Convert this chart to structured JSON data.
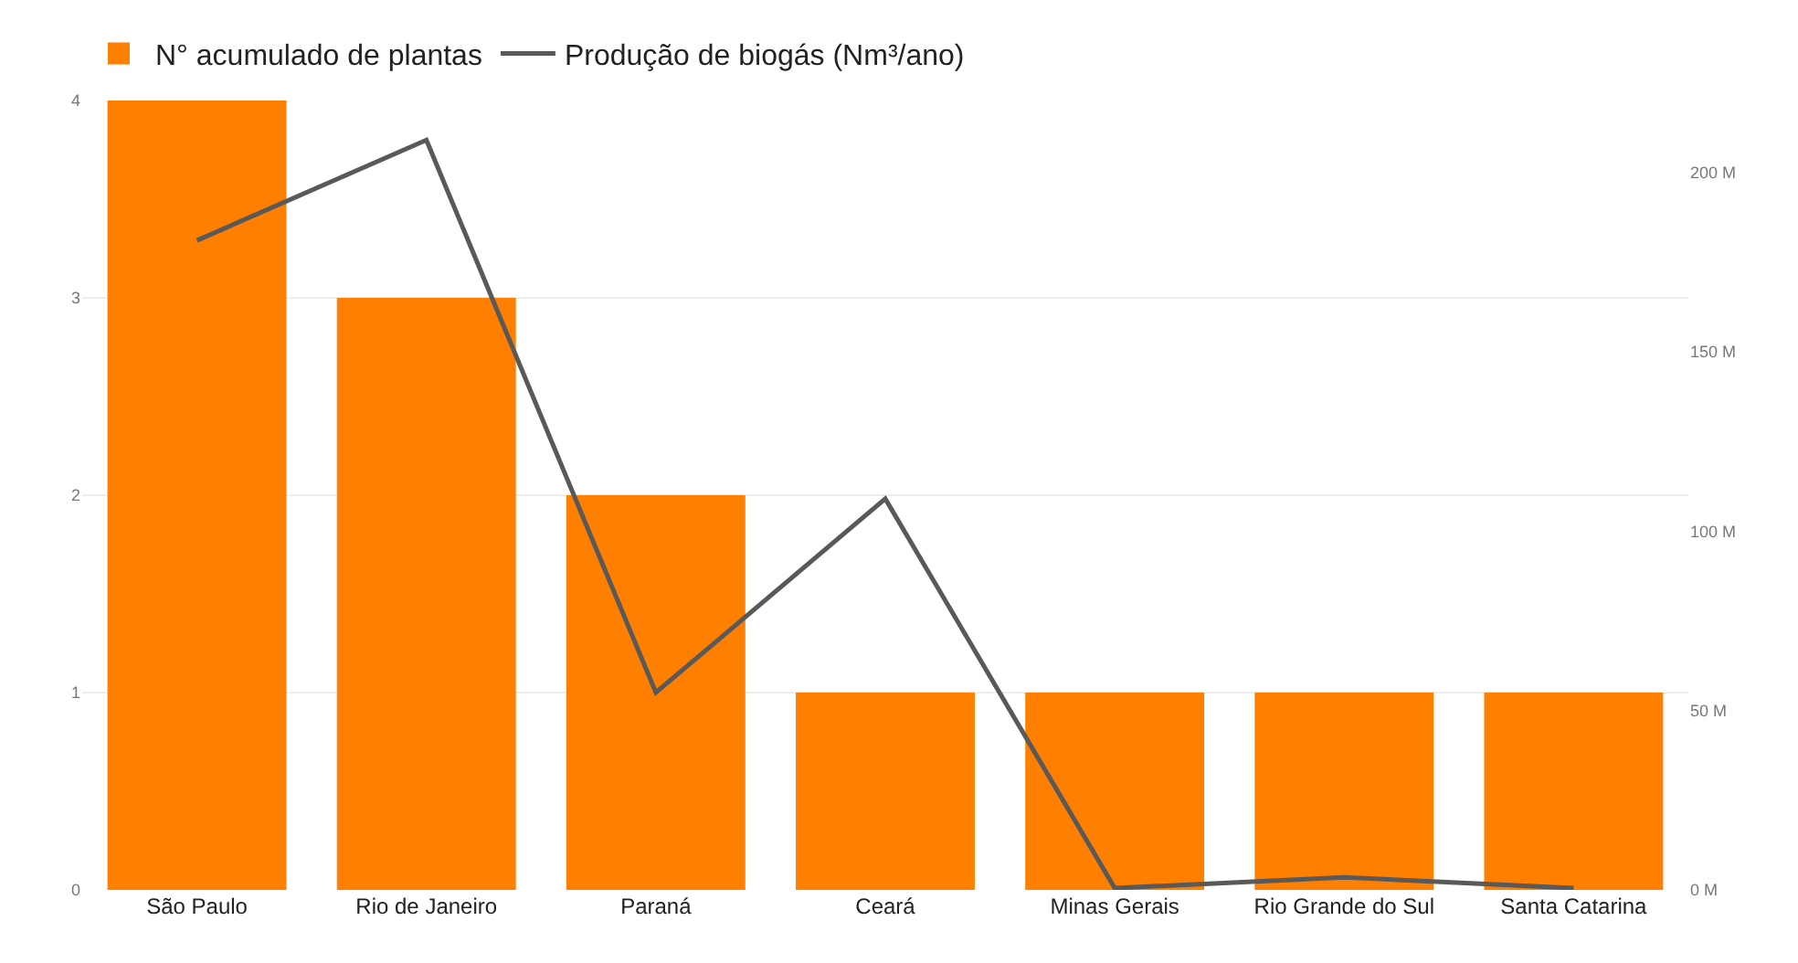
{
  "chart_data": {
    "type": "bar",
    "categories": [
      "São Paulo",
      "Rio de Janeiro",
      "Paraná",
      "Ceará",
      "Minas Gerais",
      "Rio Grande do Sul",
      "Santa Catarina"
    ],
    "series": [
      {
        "name": "N° acumulado de plantas",
        "color": "#ff7f00",
        "values": [
          4,
          3,
          2,
          1,
          1,
          1,
          1
        ]
      },
      {
        "name": "Produção de biogás (Nm³/ano)",
        "type": "line",
        "axis": "y2",
        "color": "#595959",
        "values": [
          181,
          209,
          55,
          109,
          0.5,
          3.5,
          0.5
        ]
      }
    ],
    "ylim": [
      0,
      4
    ],
    "yticks": [
      0,
      1,
      2,
      3,
      4
    ],
    "y2lim": [
      0,
      220
    ],
    "y2ticks": [
      {
        "value": 0,
        "label": "0 M"
      },
      {
        "value": 50,
        "label": "50 M"
      },
      {
        "value": 100,
        "label": "100 M"
      },
      {
        "value": 150,
        "label": "150 M"
      },
      {
        "value": 200,
        "label": "200 M"
      }
    ],
    "grid": "y",
    "legend": "top left",
    "marker": "none"
  }
}
